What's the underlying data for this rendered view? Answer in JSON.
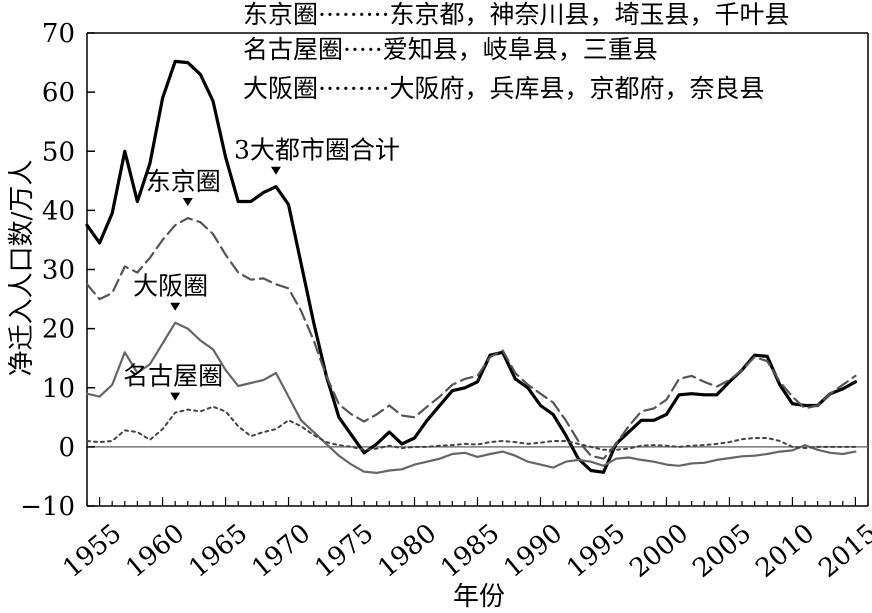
{
  "chart_data": {
    "type": "line",
    "title": "",
    "xlabel": "年份",
    "ylabel": "净迁入人口数/万人",
    "xlim": [
      1954,
      2016
    ],
    "ylim": [
      -10,
      70
    ],
    "grid": false,
    "zero_line": true,
    "x_ticks": [
      1955,
      1960,
      1965,
      1970,
      1975,
      1980,
      1985,
      1990,
      1995,
      2000,
      2005,
      2010,
      2015
    ],
    "x_tick_labels": [
      "1955",
      "1960",
      "1965",
      "1970",
      "1975",
      "1980",
      "1985",
      "1990",
      "1995",
      "2000",
      "2005",
      "2010",
      "2015"
    ],
    "y_ticks": [
      -10,
      0,
      10,
      20,
      30,
      40,
      50,
      60,
      70
    ],
    "y_tick_labels": [
      "−10",
      "0",
      "10",
      "20",
      "30",
      "40",
      "50",
      "60",
      "70"
    ],
    "legend_lines": [
      "东京圈·········东京都，神奈川县，埼玉县，千叶县",
      "名古屋圈·····爱知县，岐阜县，三重县",
      "大阪圈·········大阪府，兵库县，京都府，奈良县"
    ],
    "annotations": [
      {
        "text": "3大都市圈合计",
        "target_series": "total",
        "x": 1969
      },
      {
        "text": "东京圈",
        "target_series": "tokyo",
        "x": 1962
      },
      {
        "text": "大阪圈",
        "target_series": "osaka",
        "x": 1961
      },
      {
        "text": "名古屋圈",
        "target_series": "nagoya",
        "x": 1961
      }
    ],
    "x": [
      1954,
      1955,
      1956,
      1957,
      1958,
      1959,
      1960,
      1961,
      1962,
      1963,
      1964,
      1965,
      1966,
      1967,
      1968,
      1969,
      1970,
      1971,
      1972,
      1973,
      1974,
      1975,
      1976,
      1977,
      1978,
      1979,
      1980,
      1981,
      1982,
      1983,
      1984,
      1985,
      1986,
      1987,
      1988,
      1989,
      1990,
      1991,
      1992,
      1993,
      1994,
      1995,
      1996,
      1997,
      1998,
      1999,
      2000,
      2001,
      2002,
      2003,
      2004,
      2005,
      2006,
      2007,
      2008,
      2009,
      2010,
      2011,
      2012,
      2013,
      2014,
      2015
    ],
    "series": [
      {
        "key": "total",
        "color": "#000000",
        "style": "solid",
        "width": 3.2,
        "values": [
          37.5,
          34.5,
          39.5,
          50,
          41.5,
          48,
          59,
          65.2,
          65,
          63,
          58.5,
          49,
          41.5,
          41.5,
          43,
          44,
          41,
          31,
          21,
          12,
          5,
          2,
          -1,
          0.5,
          2.5,
          0.5,
          1.5,
          4.5,
          7,
          9.5,
          10,
          11,
          15.5,
          16,
          11.5,
          10,
          7,
          5.5,
          2,
          -2,
          -4,
          -4.3,
          0.5,
          2.5,
          4.5,
          4.5,
          5.5,
          8.8,
          9,
          8.8,
          8.8,
          11,
          13,
          15.5,
          15.3,
          10.5,
          7.3,
          7,
          7,
          9,
          9.8,
          11
        ]
      },
      {
        "key": "tokyo",
        "color": "#555555",
        "style": "dashed",
        "width": 2.2,
        "values": [
          27.5,
          25,
          26,
          30.5,
          29.5,
          32,
          35,
          37.5,
          38.7,
          38,
          36,
          32.5,
          29.5,
          28.3,
          28.5,
          27.5,
          26.8,
          23,
          18,
          12,
          7.2,
          5.5,
          4.3,
          5.5,
          7,
          5.3,
          5,
          6.8,
          8.5,
          10.5,
          11.5,
          12,
          15.2,
          16.3,
          12.5,
          10.5,
          9,
          7.5,
          4.5,
          1,
          -1.5,
          -2,
          0.5,
          3.5,
          6,
          6.5,
          8,
          11.5,
          12,
          11,
          10.2,
          11.3,
          13,
          15.2,
          14.5,
          11,
          8.5,
          6.5,
          7,
          9,
          10.5,
          12
        ]
      },
      {
        "key": "osaka",
        "color": "#666666",
        "style": "solid",
        "width": 2.2,
        "values": [
          9,
          8.5,
          10.5,
          16,
          12.5,
          14,
          17.5,
          21,
          20,
          18,
          16.5,
          13,
          10.3,
          10.8,
          11.3,
          12.5,
          8.5,
          4.5,
          2.5,
          0.5,
          -1.5,
          -3,
          -4.2,
          -4.4,
          -4,
          -3.8,
          -3,
          -2.5,
          -2,
          -1.2,
          -1,
          -1.7,
          -1.2,
          -0.8,
          -1.5,
          -2.5,
          -3,
          -3.5,
          -2.5,
          -2.2,
          -2.5,
          -3.2,
          -2,
          -1.8,
          -2.2,
          -2.5,
          -3,
          -3.2,
          -2.8,
          -2.7,
          -2.2,
          -1.9,
          -1.6,
          -1.5,
          -1.2,
          -0.8,
          -0.6,
          0.3,
          -0.5,
          -1,
          -1.2,
          -0.8
        ]
      },
      {
        "key": "nagoya",
        "color": "#444444",
        "style": "dotted",
        "width": 2.0,
        "values": [
          1,
          0.8,
          1,
          2.8,
          2.5,
          1.2,
          3,
          5.8,
          6.3,
          6,
          6.8,
          6,
          3.5,
          1.8,
          2.5,
          3,
          4.5,
          3.5,
          2,
          0.8,
          0.3,
          0,
          -0.5,
          -0.3,
          0.2,
          -0.2,
          0,
          0,
          0.2,
          0.3,
          0.5,
          0.4,
          0.8,
          1,
          0.8,
          0.5,
          0.7,
          1,
          1,
          0.5,
          0,
          -0.5,
          -0.5,
          -0.3,
          0.2,
          0.3,
          0.2,
          0,
          0.2,
          0.3,
          0.5,
          0.8,
          1.3,
          1.5,
          1.5,
          1,
          0,
          -0.2,
          0,
          0,
          0,
          0
        ]
      }
    ]
  }
}
